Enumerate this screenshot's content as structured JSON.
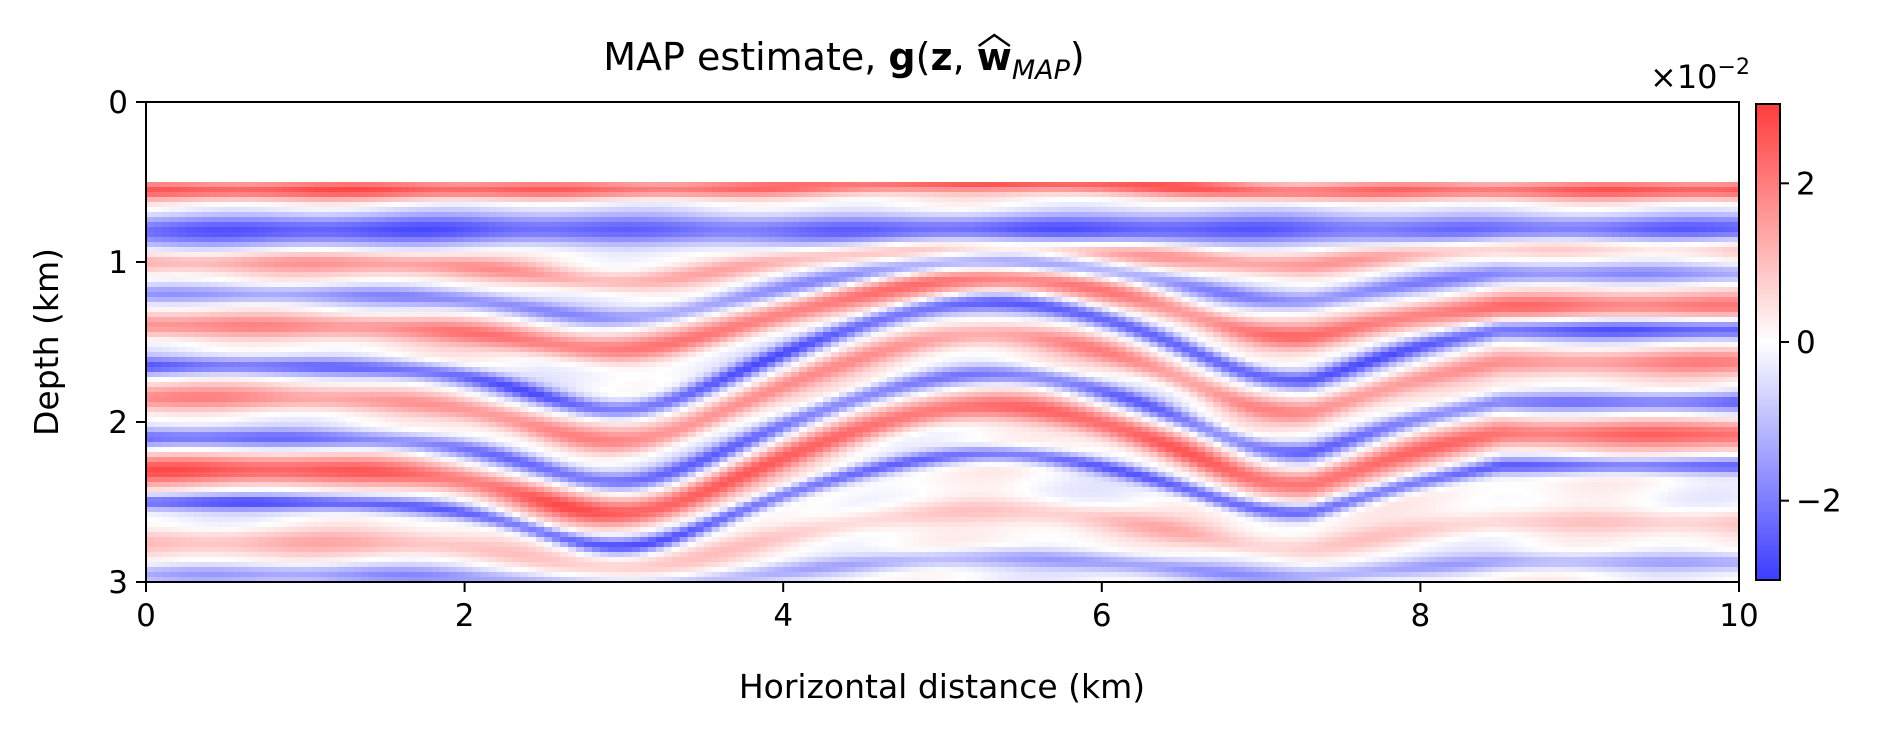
{
  "chart_data": {
    "type": "heatmap",
    "title": {
      "prefix": "MAP estimate, ",
      "g": "g",
      "open_paren": "(",
      "z": "z",
      "comma": ", ",
      "w": "w",
      "subscript": "MAP",
      "close_paren": ")"
    },
    "xlabel": "Horizontal distance (km)",
    "ylabel": "Depth (km)",
    "xlim": [
      0,
      10
    ],
    "ylim": [
      3,
      0
    ],
    "xticks": [
      0,
      2,
      4,
      6,
      8,
      10
    ],
    "yticks": [
      0,
      1,
      2,
      3
    ],
    "water_depth_km": 0.5,
    "colormap": "bwr",
    "colors": {
      "negative": "#3c3cff",
      "zero": "#ffffff",
      "positive": "#ff3c3c",
      "axis": "#000000"
    },
    "colorbar": {
      "range": [
        -0.03,
        0.03
      ],
      "ticks": [
        -2,
        0,
        2
      ],
      "tick_labels": [
        "−2",
        "0",
        "2"
      ],
      "multiplier_base": "×10",
      "multiplier_exp": "−2"
    },
    "layers": [
      {
        "depth": 0.55,
        "amp": 1,
        "anticline": 0.05,
        "ramp": 0.0,
        "thick": 0.06
      },
      {
        "depth": 0.8,
        "amp": -1,
        "anticline": 0.0,
        "ramp": 0.0,
        "thick": 0.1
      },
      {
        "depth": 1.0,
        "amp": 0.6,
        "anticline": 0.1,
        "ramp": 0.4,
        "thick": 0.07
      },
      {
        "depth": 1.2,
        "amp": -0.7,
        "anticline": 0.2,
        "ramp": 0.5,
        "thick": 0.06
      },
      {
        "depth": 1.4,
        "amp": 0.8,
        "anticline": 0.3,
        "ramp": 0.5,
        "thick": 0.08
      },
      {
        "depth": 1.65,
        "amp": -1,
        "anticline": 0.4,
        "ramp": 0.9,
        "thick": 0.06
      },
      {
        "depth": 1.85,
        "amp": 0.7,
        "anticline": 0.4,
        "ramp": 0.9,
        "thick": 0.08
      },
      {
        "depth": 2.1,
        "amp": -0.9,
        "anticline": 0.4,
        "ramp": 0.9,
        "thick": 0.06
      },
      {
        "depth": 2.3,
        "amp": 1,
        "anticline": 0.4,
        "ramp": 0.9,
        "thick": 0.09
      },
      {
        "depth": 2.5,
        "amp": -1,
        "anticline": 0.3,
        "ramp": 0.9,
        "thick": 0.05
      },
      {
        "depth": 2.75,
        "amp": 0.4,
        "anticline": 0.2,
        "ramp": 0.5,
        "thick": 0.08
      },
      {
        "depth": 2.95,
        "amp": -0.6,
        "anticline": 0.1,
        "ramp": 0.3,
        "thick": 0.06
      }
    ]
  }
}
